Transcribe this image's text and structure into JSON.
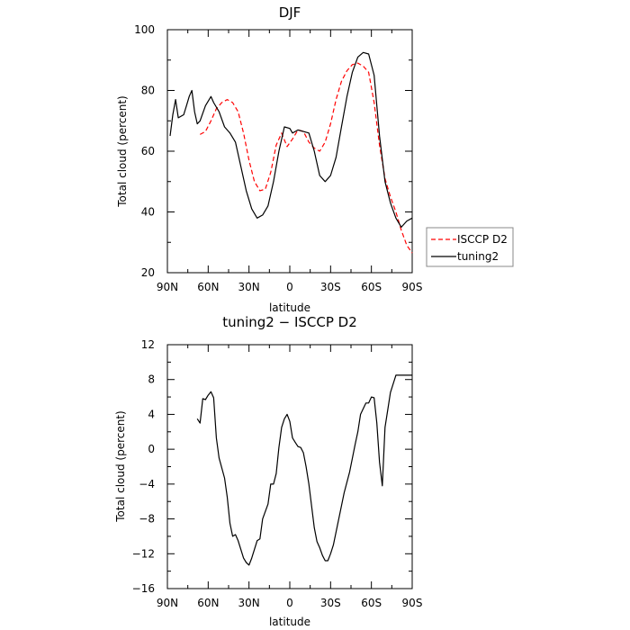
{
  "chart_data": [
    {
      "type": "line",
      "title": "DJF",
      "xlabel": "latitude",
      "ylabel": "Total cloud (percent)",
      "xlim": [
        90,
        -90
      ],
      "ylim": [
        20,
        100
      ],
      "xticks": [
        90,
        60,
        30,
        0,
        -30,
        -60,
        -90
      ],
      "xtick_labels": [
        "90N",
        "60N",
        "30N",
        "0",
        "30S",
        "60S",
        "90S"
      ],
      "yticks": [
        20,
        40,
        60,
        80,
        100
      ],
      "ytick_labels": [
        "20",
        "40",
        "60",
        "80",
        "100"
      ],
      "legend_position": "right",
      "series": [
        {
          "name": "ISCCP D2",
          "color": "#ff0000",
          "style": "dashed",
          "x": [
            66,
            62,
            58,
            54,
            50,
            46,
            42,
            38,
            34,
            30,
            26,
            22,
            18,
            14,
            10,
            6,
            2,
            -2,
            -6,
            -10,
            -14,
            -18,
            -22,
            -26,
            -30,
            -34,
            -38,
            -42,
            -46,
            -50,
            -54,
            -58,
            -62,
            -66,
            -70,
            -74,
            -78,
            -82,
            -86,
            -90
          ],
          "y": [
            65.5,
            66.5,
            70,
            74,
            76,
            77,
            76,
            73,
            66,
            57,
            50,
            47,
            47.5,
            53,
            62,
            66,
            61.5,
            64,
            67,
            66.5,
            63,
            61,
            60,
            63,
            69,
            77,
            83,
            86.5,
            88.5,
            89,
            88,
            86,
            76,
            62,
            51,
            45,
            40,
            34,
            29,
            26.5
          ]
        },
        {
          "name": "tuning2",
          "color": "#000000",
          "style": "solid",
          "x": [
            88,
            86,
            84,
            82,
            78,
            76,
            74,
            72,
            70,
            68,
            66,
            62,
            58,
            56,
            52,
            48,
            44,
            40,
            36,
            32,
            28,
            24,
            20,
            16,
            12,
            8,
            4,
            0,
            -2,
            -4,
            -6,
            -10,
            -14,
            -18,
            -22,
            -26,
            -30,
            -34,
            -38,
            -42,
            -46,
            -50,
            -54,
            -58,
            -62,
            -66,
            -70,
            -74,
            -78,
            -82,
            -86,
            -90
          ],
          "y": [
            65,
            72,
            77,
            71,
            72,
            75,
            78,
            80,
            73,
            69,
            70,
            75,
            78,
            76,
            73,
            68,
            66,
            63,
            55,
            47,
            41,
            38,
            39,
            42,
            50,
            60,
            68,
            67.5,
            66,
            66.5,
            67,
            66.5,
            66,
            60,
            52,
            50,
            52,
            58,
            68,
            78,
            86,
            91,
            92.5,
            92,
            85,
            65,
            50,
            43,
            38,
            35,
            37,
            38
          ]
        }
      ]
    },
    {
      "type": "line",
      "title": "tuning2 − ISCCP D2",
      "xlabel": "latitude",
      "ylabel": "Total cloud (percent)",
      "xlim": [
        90,
        -90
      ],
      "ylim": [
        -16,
        12
      ],
      "xticks": [
        90,
        60,
        30,
        0,
        -30,
        -60,
        -90
      ],
      "xtick_labels": [
        "90N",
        "60N",
        "30N",
        "0",
        "30S",
        "60S",
        "90S"
      ],
      "yticks": [
        -16,
        -12,
        -8,
        -4,
        0,
        4,
        8,
        12
      ],
      "ytick_labels": [
        "−16",
        "−12",
        "−8",
        "−4",
        "0",
        "4",
        "8",
        "12"
      ],
      "series": [
        {
          "color": "#000000",
          "style": "solid",
          "x": [
            68,
            66,
            64,
            62,
            60,
            58,
            56,
            54,
            52,
            48,
            46,
            44,
            42,
            40,
            38,
            36,
            34,
            32,
            30,
            28,
            26,
            24,
            22,
            20,
            16,
            14,
            12,
            10,
            8,
            6,
            4,
            2,
            0,
            -2,
            -4,
            -6,
            -8,
            -10,
            -12,
            -14,
            -16,
            -18,
            -20,
            -22,
            -24,
            -26,
            -28,
            -30,
            -32,
            -34,
            -36,
            -40,
            -44,
            -48,
            -50,
            -52,
            -56,
            -58,
            -60,
            -62,
            -64,
            -66,
            -68,
            -70,
            -72,
            -74,
            -78,
            -82,
            -86,
            -90
          ],
          "y": [
            3.5,
            3,
            5.8,
            5.7,
            6.2,
            6.6,
            5.9,
            1.3,
            -1,
            -3.3,
            -5.5,
            -8.5,
            -10,
            -9.8,
            -10.5,
            -11.5,
            -12.5,
            -13,
            -13.3,
            -12.5,
            -11.5,
            -10.5,
            -10.3,
            -8,
            -6.3,
            -4,
            -4,
            -2.8,
            0.2,
            2.5,
            3.5,
            4,
            3.2,
            1.3,
            0.8,
            0.3,
            0.2,
            -0.4,
            -2,
            -4,
            -6.5,
            -9,
            -10.6,
            -11.3,
            -12.2,
            -12.8,
            -12.8,
            -12,
            -11,
            -9.5,
            -8,
            -5,
            -2.6,
            0.5,
            2,
            4,
            5.3,
            5.3,
            6,
            5.9,
            3,
            -1.5,
            -4.2,
            2.5,
            4.5,
            6.5,
            8.5,
            8.5,
            8.5,
            8.5
          ]
        }
      ]
    }
  ],
  "legend": {
    "items": [
      {
        "label": "ISCCP D2",
        "color": "#ff0000",
        "style": "dashed"
      },
      {
        "label": "tuning2",
        "color": "#000000",
        "style": "solid"
      }
    ]
  }
}
